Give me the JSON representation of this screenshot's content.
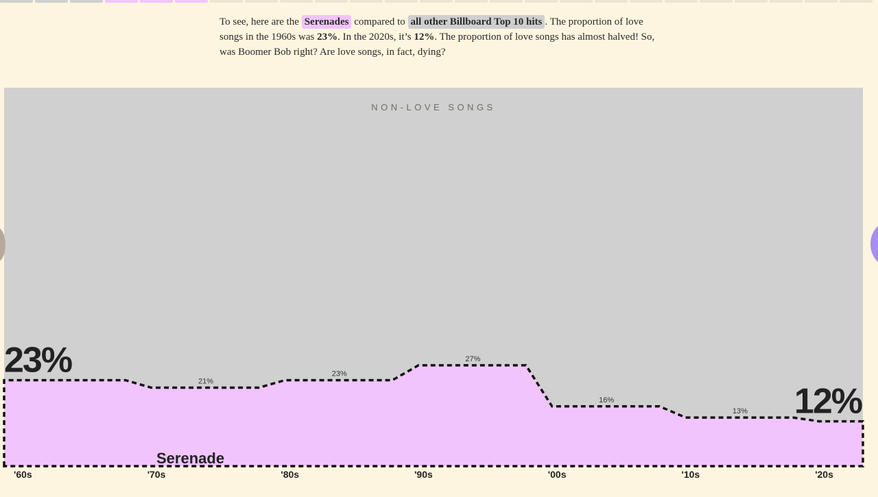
{
  "progress": {
    "segments": 25,
    "grey_done": 3,
    "pink_done": 3
  },
  "intro": {
    "t1": "To see, here are the",
    "serenades_chip": "Serenades",
    "t2": "compared to",
    "other_chip": "all other Billboard Top 10 hits",
    "t3": ". The proportion of love songs in the 1960s was",
    "v1960": "23%",
    "t4": ". In the 2020s, it’s",
    "v2020": "12%",
    "t5": ". The proportion of love songs has almost halved! So, was Boomer Bob right? Are love songs, in fact, dying?"
  },
  "colors": {
    "page_bg": "#fdf5df",
    "non_love_area": "#d0d0d0",
    "serenade_area": "#f1c4fd",
    "outline": "#111111",
    "progress_grey": "#cfcfcf",
    "progress_pink": "#f1c4fd",
    "progress_empty": "#ebe5d2"
  },
  "chart_data": {
    "type": "area",
    "title": "",
    "xlabel": "",
    "ylabel": "",
    "ylim": [
      0,
      100
    ],
    "y_unit": "%",
    "categories": [
      "'60s",
      "'70s",
      "'80s",
      "'90s",
      "'00s",
      "'10s",
      "'20s"
    ],
    "series": [
      {
        "name": "Serenade",
        "values": [
          23,
          21,
          23,
          27,
          16,
          13,
          12
        ],
        "color": "#f1c4fd"
      },
      {
        "name": "NON-LOVE SONGS",
        "values": [
          77,
          79,
          77,
          73,
          84,
          87,
          88
        ],
        "color": "#d0d0d0"
      }
    ],
    "value_labels": [
      "23%",
      "21%",
      "23%",
      "27%",
      "16%",
      "13%",
      "12%"
    ],
    "big_labels": {
      "start": "23%",
      "end": "12%"
    },
    "area_label": "Serenade",
    "band_label": "NON-LOVE SONGS",
    "grid": false,
    "legend": "none"
  }
}
